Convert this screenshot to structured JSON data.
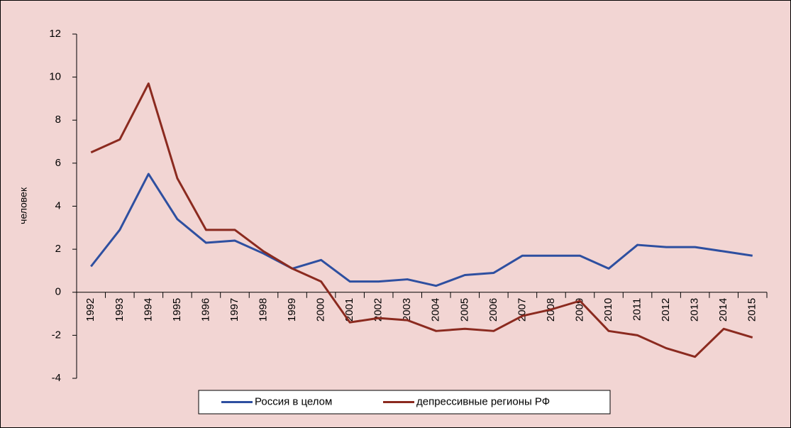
{
  "chart_data": {
    "type": "line",
    "y_label": "человек",
    "categories": [
      "1992",
      "1993",
      "1994",
      "1995",
      "1996",
      "1997",
      "1998",
      "1999",
      "2000",
      "2001",
      "2002",
      "2003",
      "2004",
      "2005",
      "2006",
      "2007",
      "2008",
      "2009",
      "2010",
      "2011",
      "2012",
      "2013",
      "2014",
      "2015"
    ],
    "series": [
      {
        "name": "Россия в целом",
        "color": "#2e4fa0",
        "values": [
          1.2,
          2.9,
          5.5,
          3.4,
          2.3,
          2.4,
          1.8,
          1.1,
          1.5,
          0.5,
          0.5,
          0.6,
          0.3,
          0.8,
          0.9,
          1.7,
          1.7,
          1.7,
          1.1,
          2.2,
          2.1,
          2.1,
          1.9,
          1.7
        ]
      },
      {
        "name": "депрессивные регионы РФ",
        "color": "#8b2a1f",
        "values": [
          6.5,
          7.1,
          9.7,
          5.3,
          2.9,
          2.9,
          1.9,
          1.1,
          0.5,
          -1.4,
          -1.2,
          -1.3,
          -1.8,
          -1.7,
          -1.8,
          -1.1,
          -0.8,
          -0.4,
          -1.8,
          -2.0,
          -2.6,
          -3.0,
          -1.7,
          -2.1
        ]
      }
    ],
    "ylim": [
      -4,
      12
    ],
    "yticks": [
      -4,
      -2,
      0,
      2,
      4,
      6,
      8,
      10,
      12
    ],
    "grid": false,
    "legend": "bottom"
  }
}
